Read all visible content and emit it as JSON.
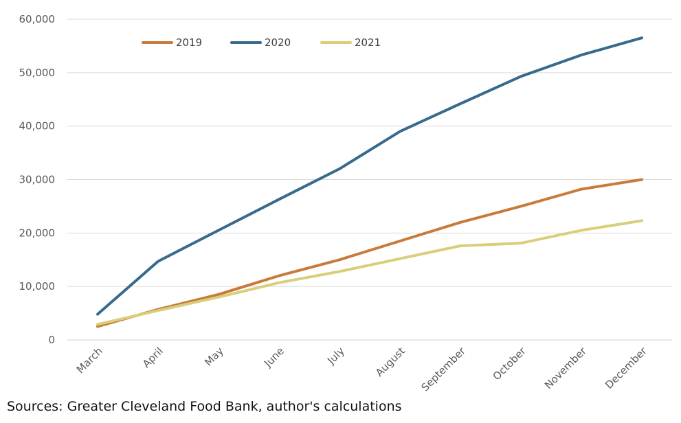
{
  "source_note": "Sources: Greater Cleveland Food Bank, author's calculations",
  "chart_data": {
    "type": "line",
    "categories": [
      "March",
      "April",
      "May",
      "June",
      "July",
      "August",
      "September",
      "October",
      "November",
      "December"
    ],
    "series": [
      {
        "name": "2019",
        "color": "#C87A3A",
        "values": [
          2500,
          5700,
          8500,
          12000,
          15000,
          18500,
          22000,
          25000,
          28200,
          30000
        ]
      },
      {
        "name": "2020",
        "color": "#376A8C",
        "values": [
          4800,
          14700,
          20500,
          26300,
          32000,
          39000,
          44200,
          49300,
          53300,
          56500
        ]
      },
      {
        "name": "2021",
        "color": "#D9CE7A",
        "values": [
          2900,
          5500,
          8000,
          10700,
          12800,
          15200,
          17600,
          18100,
          20500,
          22300
        ]
      }
    ],
    "y_ticks": [
      "0",
      "10,000",
      "20,000",
      "30,000",
      "40,000",
      "50,000",
      "60,000"
    ],
    "ylim": [
      0,
      60000
    ],
    "grid": true,
    "legend_position": "top-left"
  }
}
